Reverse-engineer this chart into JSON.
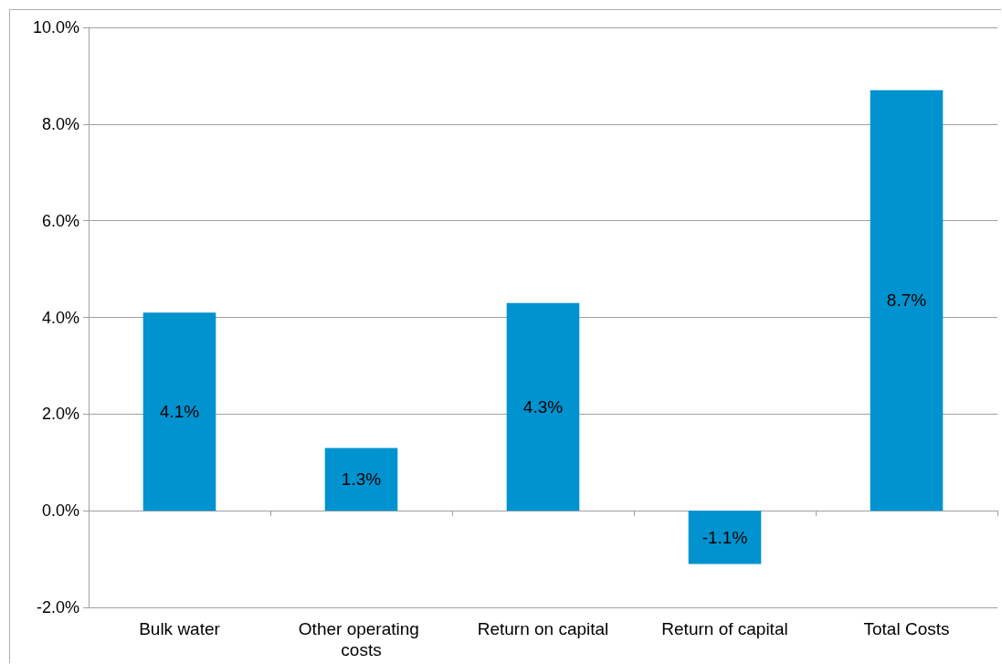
{
  "chart_data": {
    "type": "bar",
    "categories": [
      "Bulk water",
      "Other operating costs",
      "Return on capital",
      "Return of capital",
      "Total Costs"
    ],
    "values": [
      4.1,
      1.3,
      4.3,
      -1.1,
      8.7
    ],
    "value_labels": [
      "4.1%",
      "1.3%",
      "4.3%",
      "-1.1%",
      "8.7%"
    ],
    "color": "#0093cf",
    "ylim": [
      -2,
      10
    ],
    "yticks": [
      {
        "value": -2,
        "label": "-2.0%"
      },
      {
        "value": 0,
        "label": "0.0%"
      },
      {
        "value": 2,
        "label": "2.0%"
      },
      {
        "value": 4,
        "label": "4.0%"
      },
      {
        "value": 6,
        "label": "6.0%"
      },
      {
        "value": 8,
        "label": "8.0%"
      },
      {
        "value": 10,
        "label": "10.0%"
      }
    ],
    "grid": "y"
  }
}
